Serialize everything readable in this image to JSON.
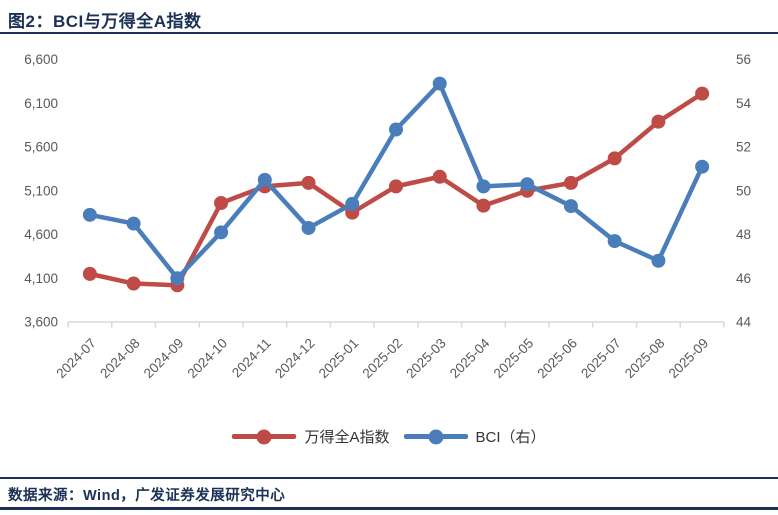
{
  "header": {
    "title": "图2：BCI与万得全A指数"
  },
  "footer": {
    "source": "数据来源：Wind，广发证券发展研究中心"
  },
  "colors": {
    "accent_navy": "#1B3155",
    "series_red": "#BF4B47",
    "series_blue": "#4A7EBB",
    "axis_text": "#595959",
    "axis_line": "#D9D9D9"
  },
  "chart_data": {
    "type": "line",
    "title": "图2：BCI与万得全A指数",
    "categories": [
      "2024-07",
      "2024-08",
      "2024-09",
      "2024-10",
      "2024-11",
      "2024-12",
      "2025-01",
      "2025-02",
      "2025-03",
      "2025-04",
      "2025-05",
      "2025-06",
      "2025-07",
      "2025-08",
      "2025-09"
    ],
    "series": [
      {
        "name": "万得全A指数",
        "axis": "left",
        "color": "#BF4B47",
        "values": [
          4150,
          4040,
          4020,
          4960,
          5150,
          5190,
          4850,
          5150,
          5260,
          4930,
          5100,
          5190,
          5470,
          5890,
          6210
        ]
      },
      {
        "name": "BCI（右）",
        "axis": "right",
        "color": "#4A7EBB",
        "values": [
          48.9,
          48.5,
          46.0,
          48.1,
          50.5,
          48.3,
          49.4,
          52.8,
          54.9,
          50.2,
          50.3,
          49.3,
          47.7,
          46.8,
          51.1
        ]
      }
    ],
    "left_axis": {
      "min": 3600,
      "max": 6600,
      "step": 500
    },
    "right_axis": {
      "min": 44,
      "max": 56,
      "step": 2
    },
    "grid": false,
    "legend_position": "bottom"
  }
}
